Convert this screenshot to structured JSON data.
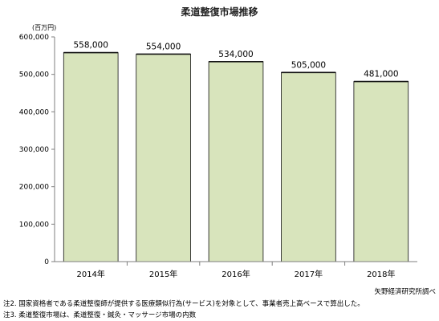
{
  "chart_data": {
    "type": "bar",
    "title": "柔道整復市場推移",
    "unit": "(百万円)",
    "categories": [
      "2014年",
      "2015年",
      "2016年",
      "2017年",
      "2018年"
    ],
    "values": [
      558000,
      554000,
      534000,
      505000,
      481000
    ],
    "data_labels": [
      "558,000",
      "554,000",
      "534,000",
      "505,000",
      "481,000"
    ],
    "ylim": [
      0,
      600000
    ],
    "yticks": [
      0,
      100000,
      200000,
      300000,
      400000,
      500000,
      600000
    ],
    "ytick_labels": [
      "0",
      "100,000",
      "200,000",
      "300,000",
      "400,000",
      "500,000",
      "600,000"
    ],
    "grid": false,
    "legend": "none",
    "colors": {
      "bar_fill": "#d8e4bc",
      "bar_stroke": "#111111",
      "axis": "#7f7f7f"
    }
  },
  "source": "矢野経済研究所調べ",
  "notes": [
    "注2. 国家資格者である柔道整復師が提供する医療類似行為(サービス)を対象として、事業者売上高ベースで算出した。",
    "注3. 柔道整復市場は、柔道整復・鍼灸・マッサージ市場の内数"
  ]
}
